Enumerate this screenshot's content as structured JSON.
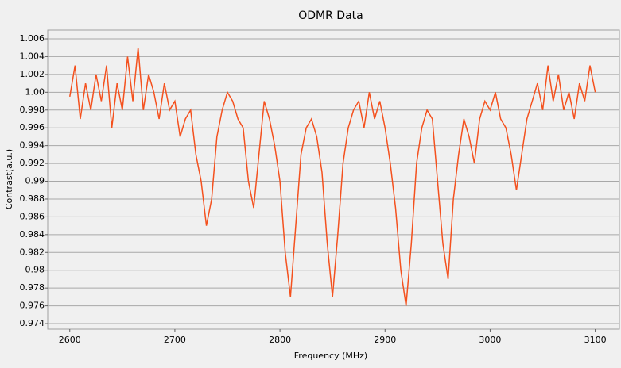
{
  "chart_data": {
    "type": "line",
    "title": "ODMR Data",
    "x_label": "Frequency (MHz)",
    "y_label": "Contrast(a.u.)",
    "x": [
      2600,
      2605,
      2610,
      2615,
      2620,
      2625,
      2630,
      2635,
      2640,
      2645,
      2650,
      2655,
      2660,
      2665,
      2670,
      2675,
      2680,
      2685,
      2690,
      2695,
      2700,
      2705,
      2710,
      2715,
      2720,
      2725,
      2730,
      2735,
      2740,
      2745,
      2750,
      2755,
      2760,
      2765,
      2770,
      2775,
      2780,
      2785,
      2790,
      2795,
      2800,
      2805,
      2810,
      2815,
      2820,
      2825,
      2830,
      2835,
      2840,
      2845,
      2850,
      2855,
      2860,
      2865,
      2870,
      2875,
      2880,
      2885,
      2890,
      2895,
      2900,
      2905,
      2910,
      2915,
      2920,
      2925,
      2930,
      2935,
      2940,
      2945,
      2950,
      2955,
      2960,
      2965,
      2970,
      2975,
      2980,
      2985,
      2990,
      2995,
      3000,
      3005,
      3010,
      3015,
      3020,
      3025,
      3030,
      3035,
      3040,
      3045,
      3050,
      3055,
      3060,
      3065,
      3070,
      3075,
      3080,
      3085,
      3090,
      3095,
      3100
    ],
    "series": [
      {
        "color": "#f4511e",
        "values": [
          0.9995,
          1.003,
          0.997,
          1.001,
          0.998,
          1.002,
          0.999,
          1.003,
          0.996,
          1.001,
          0.998,
          1.004,
          0.999,
          1.005,
          0.998,
          1.002,
          1.0,
          0.997,
          1.001,
          0.998,
          0.999,
          0.995,
          0.997,
          0.998,
          0.993,
          0.99,
          0.985,
          0.988,
          0.995,
          0.998,
          1.0,
          0.999,
          0.997,
          0.996,
          0.99,
          0.987,
          0.993,
          0.999,
          0.997,
          0.994,
          0.99,
          0.982,
          0.977,
          0.985,
          0.993,
          0.996,
          0.997,
          0.995,
          0.991,
          0.983,
          0.977,
          0.984,
          0.992,
          0.996,
          0.998,
          0.999,
          0.996,
          1.0,
          0.997,
          0.999,
          0.996,
          0.992,
          0.987,
          0.98,
          0.976,
          0.983,
          0.992,
          0.996,
          0.998,
          0.997,
          0.99,
          0.983,
          0.979,
          0.988,
          0.993,
          0.997,
          0.995,
          0.992,
          0.997,
          0.999,
          0.998,
          1.0,
          0.997,
          0.996,
          0.993,
          0.989,
          0.993,
          0.997,
          0.999,
          1.001,
          0.998,
          1.003,
          0.999,
          1.002,
          0.998,
          1.0,
          0.997,
          1.001,
          0.999,
          1.003,
          1.0
        ]
      }
    ],
    "xlim": [
      2579,
      3123
    ],
    "xticks": [
      2600,
      2700,
      2800,
      2900,
      3000,
      3100
    ],
    "ylim": [
      0.97338,
      1.00698
    ],
    "yticks": [
      0.974,
      0.976,
      0.978,
      0.98,
      0.982,
      0.984,
      0.986,
      0.988,
      0.99,
      0.992,
      0.994,
      0.996,
      0.998,
      {
        "value": 1.0,
        "label": "1.00"
      },
      1.002,
      1.004,
      1.006
    ],
    "grid": true
  }
}
